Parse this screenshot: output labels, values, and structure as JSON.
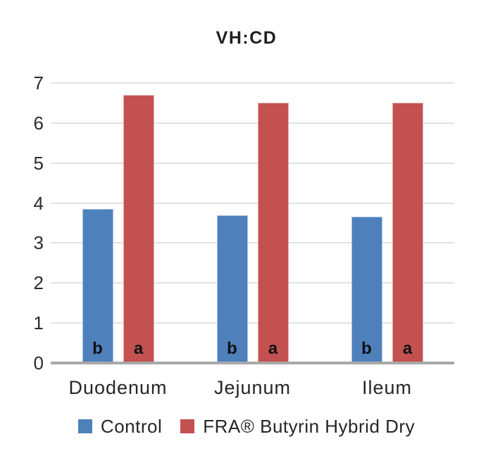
{
  "title": "VH:CD",
  "chart_data": {
    "type": "bar",
    "title": "VH:CD",
    "categories": [
      "Duodenum",
      "Jejunum",
      "Ileum"
    ],
    "series": [
      {
        "name": "Control",
        "color": "#4e81bc",
        "edge_color": "#a9c2e1",
        "values": [
          3.85,
          3.7,
          3.65
        ],
        "bar_letters": [
          "b",
          "b",
          "b"
        ]
      },
      {
        "name": "FRA® Butyrin Hybrid Dry",
        "color": "#c25150",
        "edge_color": "#e3b1b0",
        "values": [
          6.7,
          6.5,
          6.5
        ],
        "bar_letters": [
          "a",
          "a",
          "a"
        ]
      }
    ],
    "ylim": [
      0,
      7
    ],
    "yticks": [
      0,
      1,
      2,
      3,
      4,
      5,
      6,
      7
    ],
    "xlabel": "",
    "ylabel": "",
    "grid": true,
    "legend_position": "bottom"
  },
  "colors": {
    "background": "#ffffff",
    "grid": "#e2e2e2",
    "axis": "#a8a8a8",
    "text": "#262626",
    "title_text": "#1f1f1f",
    "bar_letter_text": "#111111"
  }
}
